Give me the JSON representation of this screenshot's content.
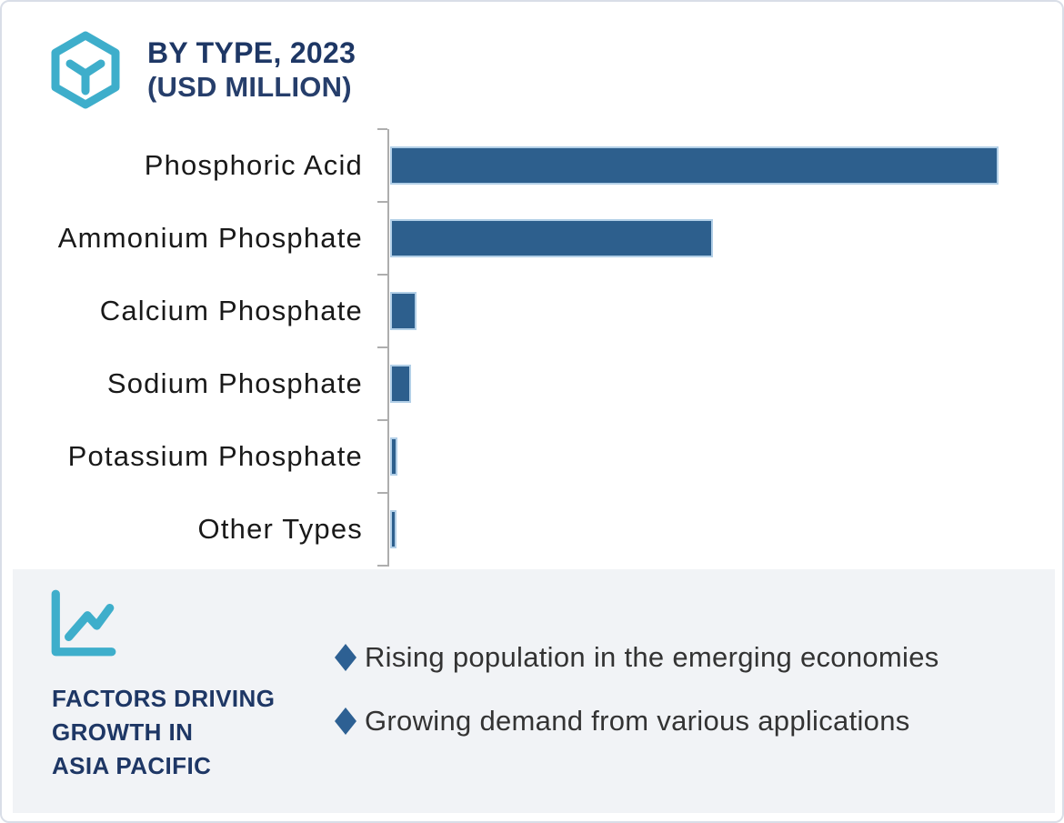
{
  "header": {
    "title": "BY TYPE, 2023",
    "subtitle": "(USD MILLION)"
  },
  "chart_data": {
    "type": "bar",
    "orientation": "horizontal",
    "title": "BY TYPE, 2023 (USD MILLION)",
    "xlabel": "",
    "ylabel": "",
    "categories": [
      "Phosphoric Acid",
      "Ammonium Phosphate",
      "Calcium Phosphate",
      "Sodium Phosphate",
      "Potassium Phosphate",
      "Other Types"
    ],
    "values": [
      100,
      53,
      4.3,
      3.4,
      1.2,
      1.0
    ],
    "values_unit": "relative bar length, % of longest bar (value axis unlabeled in image)",
    "bar_color": "#2d5f8d",
    "bar_outline_color": "#b2cfe7",
    "axis_color": "#aeaeae",
    "grid": false,
    "legend": false
  },
  "factors": {
    "heading_lines": [
      "FACTORS DRIVING",
      "GROWTH IN",
      "ASIA PACIFIC"
    ],
    "bullets": [
      "Rising population in the emerging economies",
      "Growing demand from various applications"
    ]
  },
  "icons": {
    "logo": "hexagon-cube-icon",
    "panel": "line-chart-icon",
    "bullet": "diamond-bullet-icon"
  },
  "colors": {
    "accent_teal": "#3eaecb",
    "navy": "#1e3765",
    "bar_blue": "#2d5f8d",
    "diamond_blue": "#2d6093",
    "panel_bg": "#f1f3f6",
    "text_black": "#191919",
    "bullet_text": "#333333",
    "border": "#d9dee7"
  }
}
